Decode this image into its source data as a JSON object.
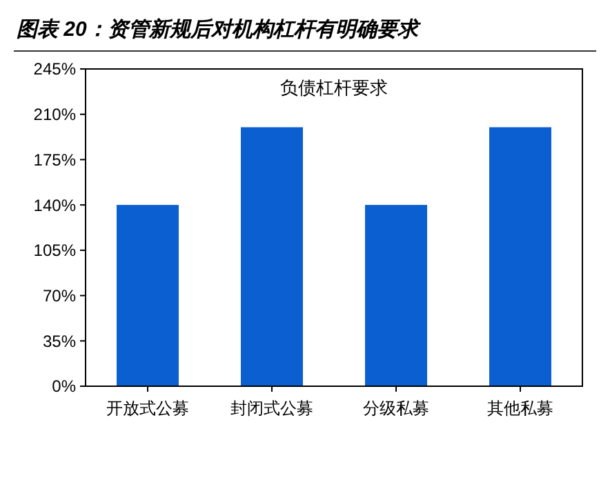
{
  "chart_data": {
    "type": "bar",
    "title": "图表 20：资管新规后对机构杠杆有明确要求",
    "subtitle": "负债杠杆要求",
    "categories": [
      "开放式公募",
      "封闭式公募",
      "分级私募",
      "其他私募"
    ],
    "values": [
      140,
      200,
      140,
      200
    ],
    "color": "#0b5fd0",
    "ylim": [
      0,
      245
    ],
    "yticks": [
      {
        "value": 0,
        "label": "0%"
      },
      {
        "value": 35,
        "label": "35%"
      },
      {
        "value": 70,
        "label": "70%"
      },
      {
        "value": 105,
        "label": "105%"
      },
      {
        "value": 140,
        "label": "140%"
      },
      {
        "value": 175,
        "label": "175%"
      },
      {
        "value": 210,
        "label": "210%"
      },
      {
        "value": 245,
        "label": "245%"
      }
    ],
    "grid": false
  }
}
